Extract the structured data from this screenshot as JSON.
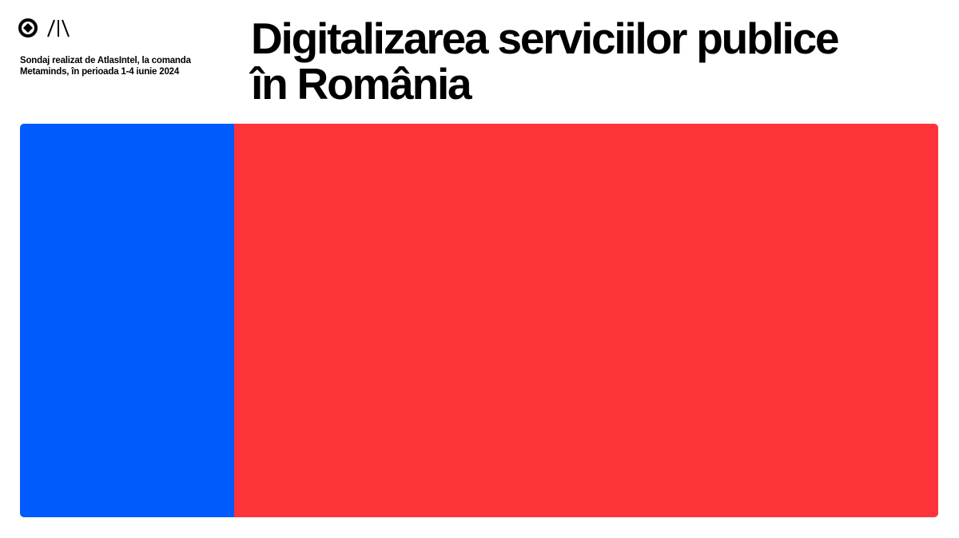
{
  "header": {
    "subtitle": [
      "Sondaj realizat de AtlasIntel, la comanda",
      "Metaminds, în perioada 1-4 iunie 2024"
    ],
    "title": [
      "Digitalizarea serviciilor publice",
      "în România"
    ]
  }
}
